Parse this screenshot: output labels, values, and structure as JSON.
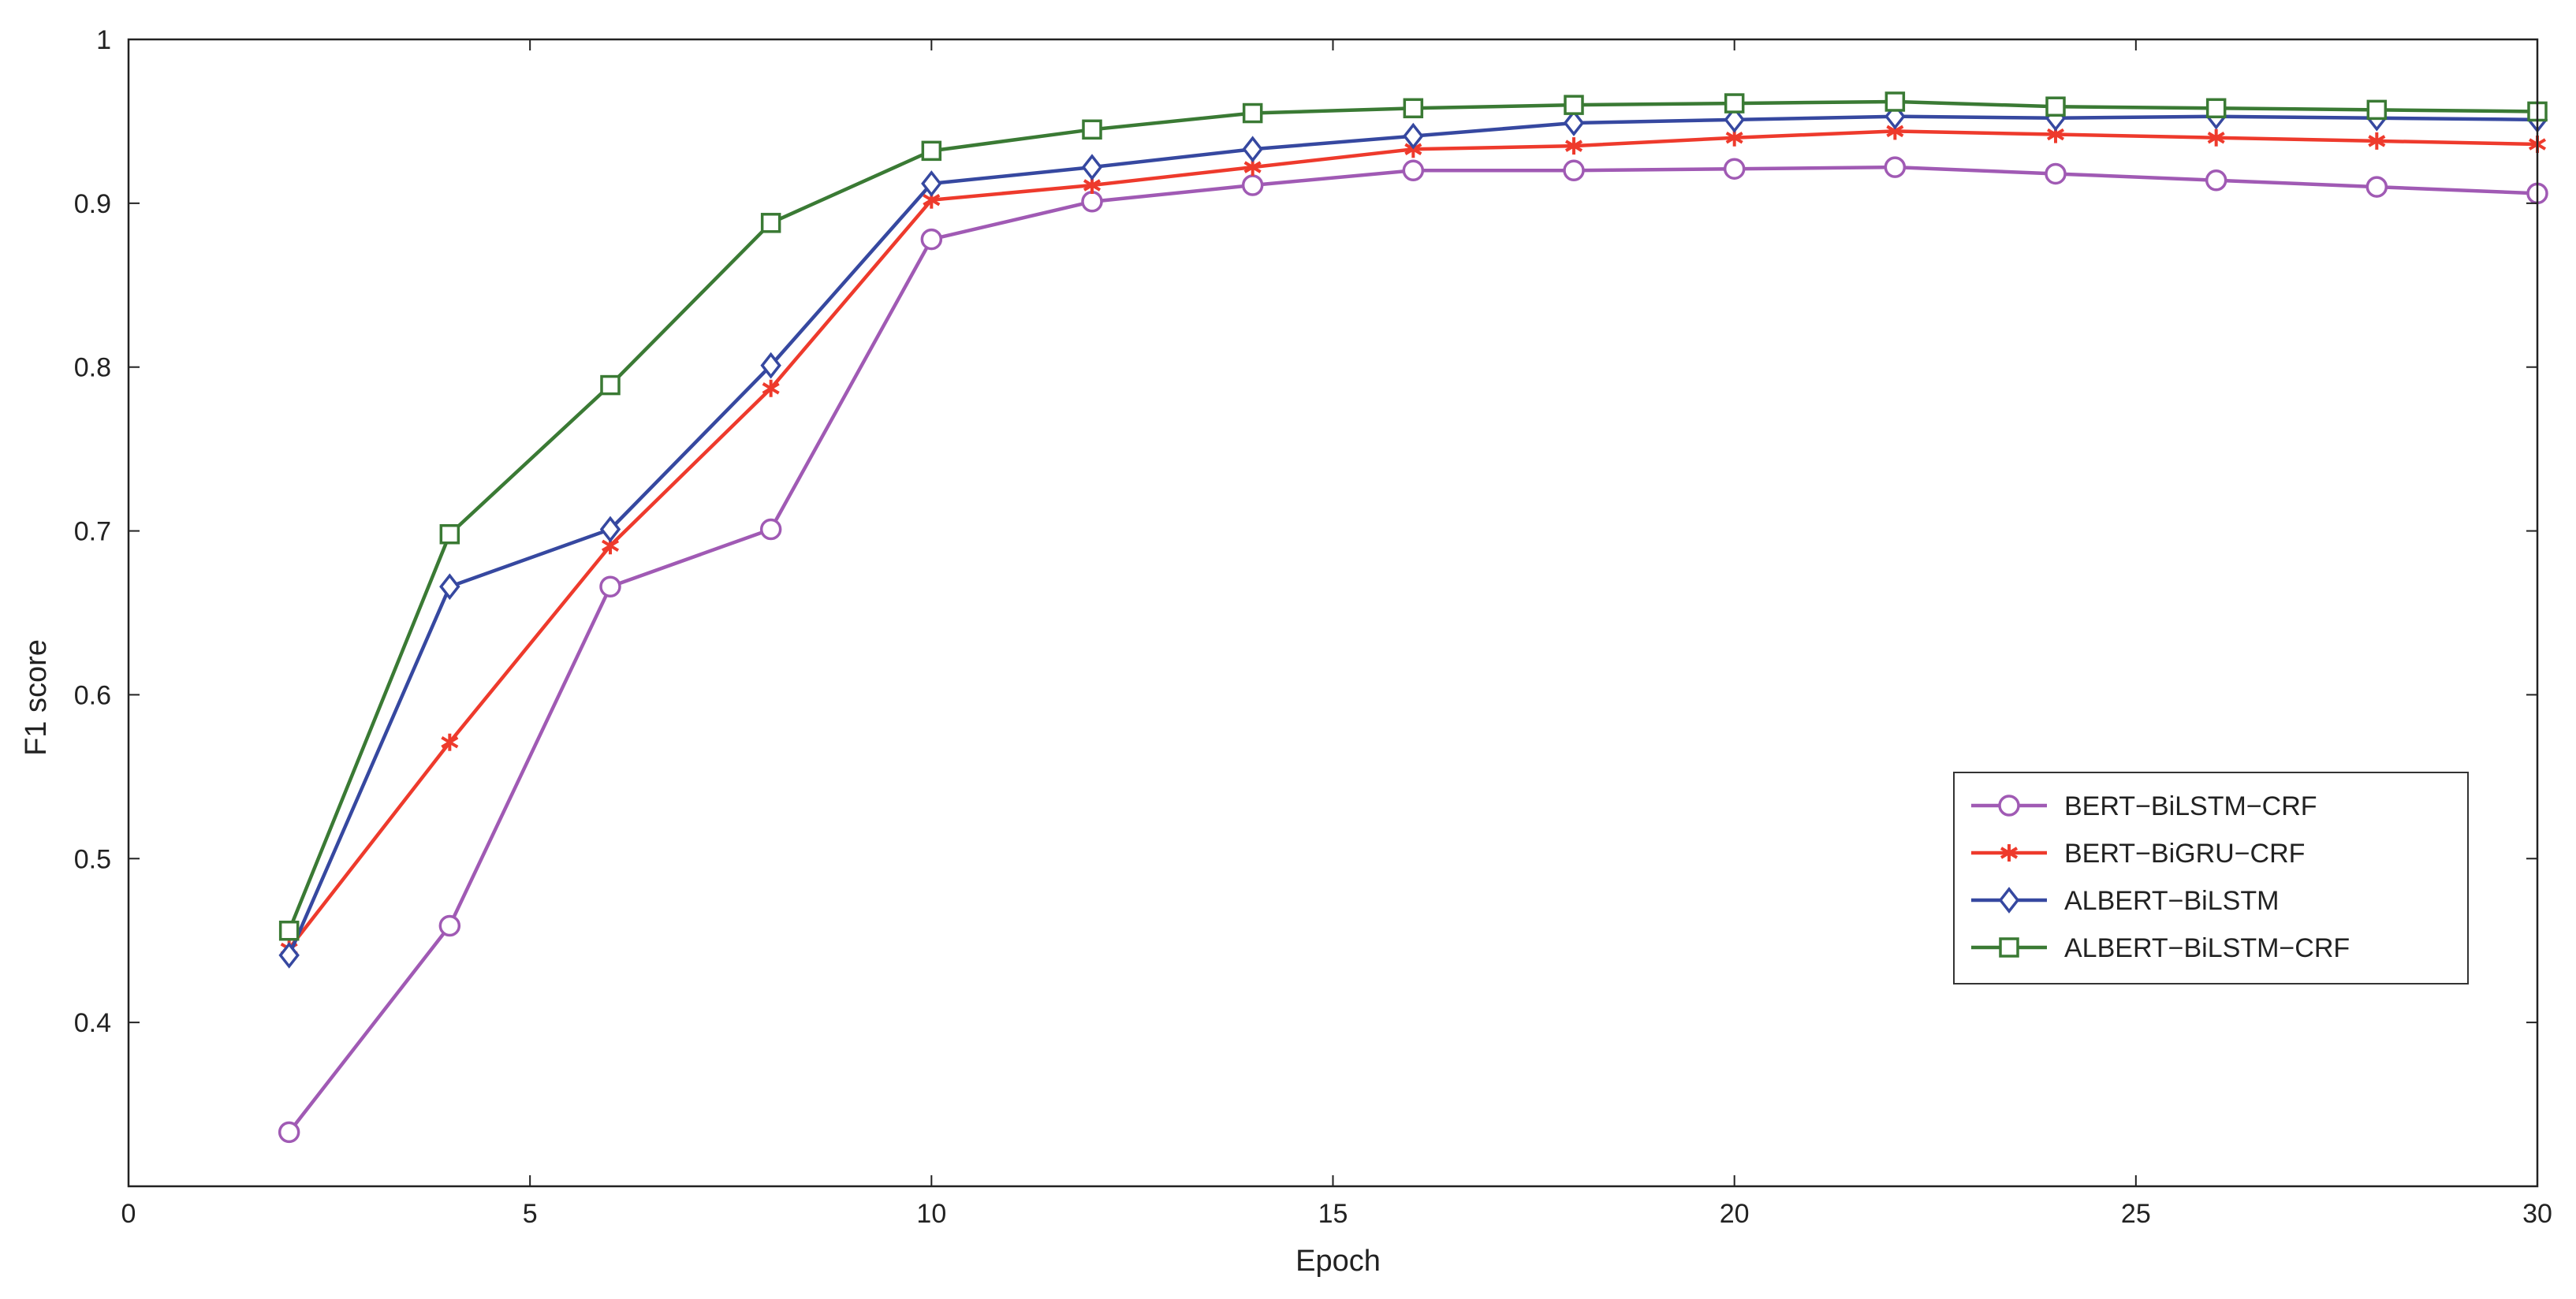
{
  "chart_data": {
    "type": "line",
    "xlabel": "Epoch",
    "ylabel": "F1 score",
    "xlim": [
      0,
      30
    ],
    "ylim": [
      0.3,
      1.0
    ],
    "xticks": [
      "0",
      "5",
      "10",
      "15",
      "20",
      "25",
      "30"
    ],
    "yticks": [
      "0.4",
      "0.5",
      "0.6",
      "0.7",
      "0.8",
      "0.9",
      "1"
    ],
    "legend_position": "right",
    "grid": false,
    "x": [
      2,
      4,
      6,
      8,
      10,
      12,
      14,
      16,
      18,
      20,
      22,
      24,
      26,
      28,
      30
    ],
    "series": [
      {
        "name": "BERT−BiLSTM−CRF",
        "color": "#a05ab4",
        "marker": "circle",
        "values": [
          0.333,
          0.459,
          0.666,
          0.701,
          0.878,
          0.901,
          0.911,
          0.92,
          0.92,
          0.921,
          0.922,
          0.918,
          0.914,
          0.91,
          0.906
        ]
      },
      {
        "name": "BERT−BiGRU−CRF",
        "color": "#ee3a2c",
        "marker": "asterisk",
        "values": [
          0.445,
          0.571,
          0.691,
          0.787,
          0.902,
          0.911,
          0.922,
          0.933,
          0.935,
          0.94,
          0.944,
          0.942,
          0.94,
          0.938,
          0.936
        ]
      },
      {
        "name": "ALBERT−BiLSTM",
        "color": "#3648a0",
        "marker": "diamond",
        "values": [
          0.441,
          0.666,
          0.701,
          0.801,
          0.912,
          0.922,
          0.933,
          0.941,
          0.949,
          0.951,
          0.953,
          0.952,
          0.953,
          0.952,
          0.951
        ]
      },
      {
        "name": "ALBERT−BiLSTM−CRF",
        "color": "#3a7a34",
        "marker": "square",
        "values": [
          0.456,
          0.698,
          0.789,
          0.888,
          0.932,
          0.945,
          0.955,
          0.958,
          0.96,
          0.961,
          0.962,
          0.959,
          0.958,
          0.957,
          0.956
        ]
      }
    ]
  }
}
